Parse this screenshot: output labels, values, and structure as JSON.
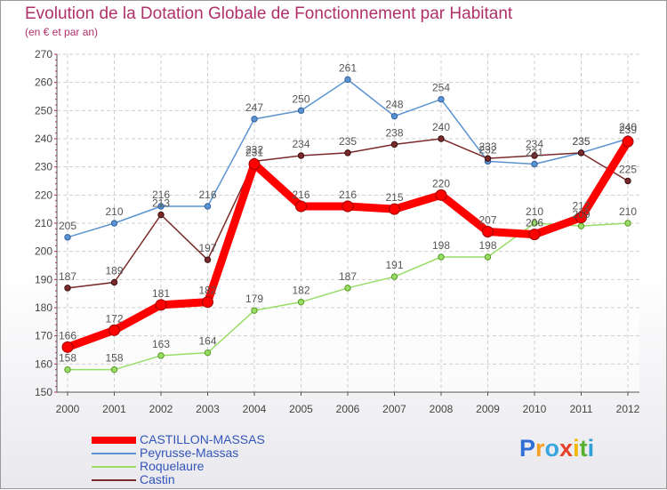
{
  "chart_data": {
    "type": "line",
    "title": "Evolution de la Dotation Globale de Fonctionnement par Habitant",
    "subtitle": "(en € et par an)",
    "xlabel": "",
    "ylabel": "",
    "categories": [
      "2000",
      "2001",
      "2002",
      "2003",
      "2004",
      "2005",
      "2006",
      "2007",
      "2008",
      "2009",
      "2010",
      "2011",
      "2012"
    ],
    "ylim": [
      150,
      270
    ],
    "yticks": [
      150,
      160,
      170,
      180,
      190,
      200,
      210,
      220,
      230,
      240,
      250,
      260,
      270
    ],
    "grid": true,
    "series": [
      {
        "name": "CASTILLON-MASSAS",
        "color": "#ff0000",
        "values": [
          166,
          172,
          181,
          182,
          231,
          216,
          216,
          215,
          220,
          207,
          206,
          212,
          239
        ]
      },
      {
        "name": "Peyrusse-Massas",
        "color": "#5a93d0",
        "values": [
          205,
          210,
          216,
          216,
          247,
          250,
          261,
          248,
          254,
          232,
          231,
          235,
          240
        ]
      },
      {
        "name": "Roquelaure",
        "color": "#99dd66",
        "values": [
          158,
          158,
          163,
          164,
          179,
          182,
          187,
          191,
          198,
          198,
          210,
          209,
          210
        ]
      },
      {
        "name": "Castin",
        "color": "#7a2a2a",
        "values": [
          187,
          189,
          213,
          197,
          232,
          234,
          235,
          238,
          240,
          233,
          234,
          235,
          225
        ]
      }
    ]
  },
  "logo": {
    "text": "Proxiti",
    "letters": [
      "P",
      "r",
      "o",
      "x",
      "i",
      "t",
      "i"
    ],
    "colors": [
      "#2f6fd6",
      "#f5a020",
      "#3aa6e0",
      "#e8402a",
      "#f5b800",
      "#58b030",
      "#2fa0d8"
    ]
  }
}
